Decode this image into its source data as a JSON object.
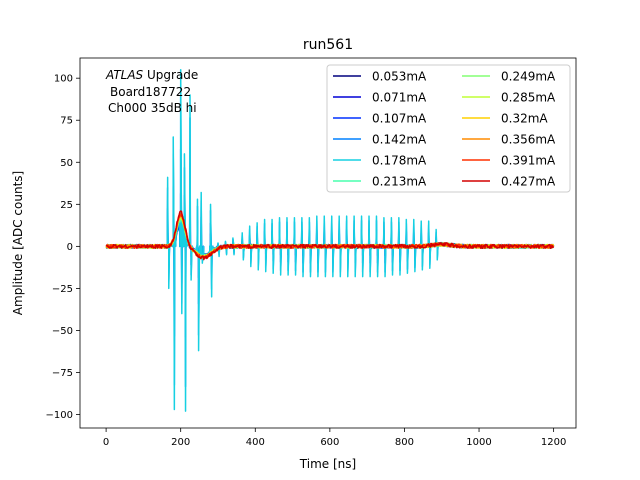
{
  "chart_data": {
    "type": "line",
    "title": "run561",
    "xlabel": "Time [ns]",
    "ylabel": "Amplitude [ADC counts]",
    "xlim": [
      -70,
      1260
    ],
    "ylim": [
      -108,
      112
    ],
    "xticks": [
      0,
      200,
      400,
      600,
      800,
      1000,
      1200
    ],
    "yticks": [
      -100,
      -75,
      -50,
      -25,
      0,
      25,
      50,
      75,
      100
    ],
    "annotation": {
      "line1_italic": "ATLAS",
      "line1_rest": " Upgrade",
      "line2": "Board187722",
      "line3": "Ch000 35dB hi"
    },
    "legend_position": "upper right",
    "legend_columns": 2,
    "series": [
      {
        "name": "0.053mA",
        "color": "#00007f",
        "ringing": 0.0
      },
      {
        "name": "0.071mA",
        "color": "#0000d6",
        "ringing": 0.3
      },
      {
        "name": "0.107mA",
        "color": "#0030ff",
        "ringing": 0.55
      },
      {
        "name": "0.142mA",
        "color": "#0080ff",
        "ringing": 0.85
      },
      {
        "name": "0.178mA",
        "color": "#16d0e2",
        "ringing": 1.0
      },
      {
        "name": "0.213mA",
        "color": "#49ffad",
        "ringing": 0.0
      },
      {
        "name": "0.249mA",
        "color": "#83ff73",
        "ringing": 0.0
      },
      {
        "name": "0.285mA",
        "color": "#c0ff36",
        "ringing": 0.0
      },
      {
        "name": "0.32mA",
        "color": "#ffd000",
        "ringing": 0.0
      },
      {
        "name": "0.356mA",
        "color": "#ff8c00",
        "ringing": 0.0
      },
      {
        "name": "0.391mA",
        "color": "#ff3000",
        "ringing": 0.0
      },
      {
        "name": "0.427mA",
        "color": "#d40000",
        "ringing": 0.0
      }
    ],
    "pulse": {
      "peak_time": 200,
      "peak_min": 12,
      "peak_max": 20,
      "undershoot": -7
    },
    "ringing_pulses": {
      "x": [
        165,
        180,
        200,
        210,
        225,
        245,
        255,
        280,
        300,
        320,
        340,
        365,
        385,
        405,
        425,
        445,
        465,
        485,
        505,
        525,
        545,
        565,
        585,
        605,
        625,
        645,
        665,
        685,
        705,
        725,
        745,
        765,
        785,
        805,
        825,
        845,
        865,
        885
      ],
      "up": [
        41,
        65,
        105,
        55,
        90,
        28,
        32,
        25,
        2,
        3,
        5,
        8,
        12,
        14,
        16,
        16,
        17,
        17,
        17,
        17,
        17,
        18,
        18,
        18,
        18,
        18,
        18,
        18,
        18,
        18,
        17,
        17,
        17,
        16,
        16,
        15,
        15,
        10
      ],
      "down": [
        -25,
        -97,
        -40,
        -98,
        -20,
        -62,
        -10,
        -30,
        -6,
        -5,
        -5,
        -8,
        -12,
        -14,
        -15,
        -16,
        -17,
        -17,
        -17,
        -18,
        -18,
        -18,
        -18,
        -18,
        -18,
        -18,
        -18,
        -18,
        -18,
        -18,
        -18,
        -17,
        -17,
        -16,
        -15,
        -14,
        -13,
        -8
      ]
    }
  }
}
